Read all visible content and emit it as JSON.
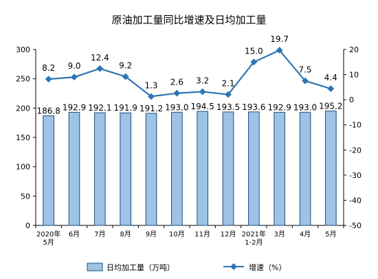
{
  "chart_data": {
    "type": "bar+line",
    "title": "原油加工量同比增速及日均加工量",
    "categories": [
      [
        "2020年",
        "5月"
      ],
      [
        "6月"
      ],
      [
        "7月"
      ],
      [
        "8月"
      ],
      [
        "9月"
      ],
      [
        "10月"
      ],
      [
        "11月"
      ],
      [
        "12月"
      ],
      [
        "2021年",
        "1-2月"
      ],
      [
        "3月"
      ],
      [
        "4月"
      ],
      [
        "5月"
      ]
    ],
    "series": [
      {
        "name": "日均加工量（万吨）",
        "type": "bar",
        "axis": "left",
        "values": [
          186.8,
          192.9,
          192.1,
          191.9,
          191.2,
          193.0,
          194.5,
          193.5,
          193.6,
          192.9,
          193.0,
          195.2
        ],
        "labels": [
          "186.8",
          "192.9",
          "192.1",
          "191.9",
          "191.2",
          "193.0",
          "194.5",
          "193.5",
          "193.6",
          "192.9",
          "193.0",
          "195.2"
        ],
        "color": "#9dc3e6",
        "stroke": "#1f4e79"
      },
      {
        "name": "增速（%）",
        "type": "line",
        "axis": "right",
        "values": [
          8.2,
          9.0,
          12.4,
          9.2,
          1.3,
          2.6,
          3.2,
          2.1,
          15.0,
          19.7,
          7.5,
          4.4
        ],
        "labels": [
          "8.2",
          "9.0",
          "12.4",
          "9.2",
          "1.3",
          "2.6",
          "3.2",
          "2.1",
          "15.0",
          "19.7",
          "7.5",
          "4.4"
        ],
        "color": "#2e75b6"
      }
    ],
    "ylim_left": [
      0,
      300
    ],
    "yticks_left": [
      0,
      50,
      100,
      150,
      200,
      250,
      300
    ],
    "ylim_right": [
      -50,
      20
    ],
    "yticks_right": [
      -50,
      -40,
      -30,
      -20,
      -10,
      0,
      10,
      20
    ],
    "grid": false,
    "legend_position": "bottom"
  }
}
